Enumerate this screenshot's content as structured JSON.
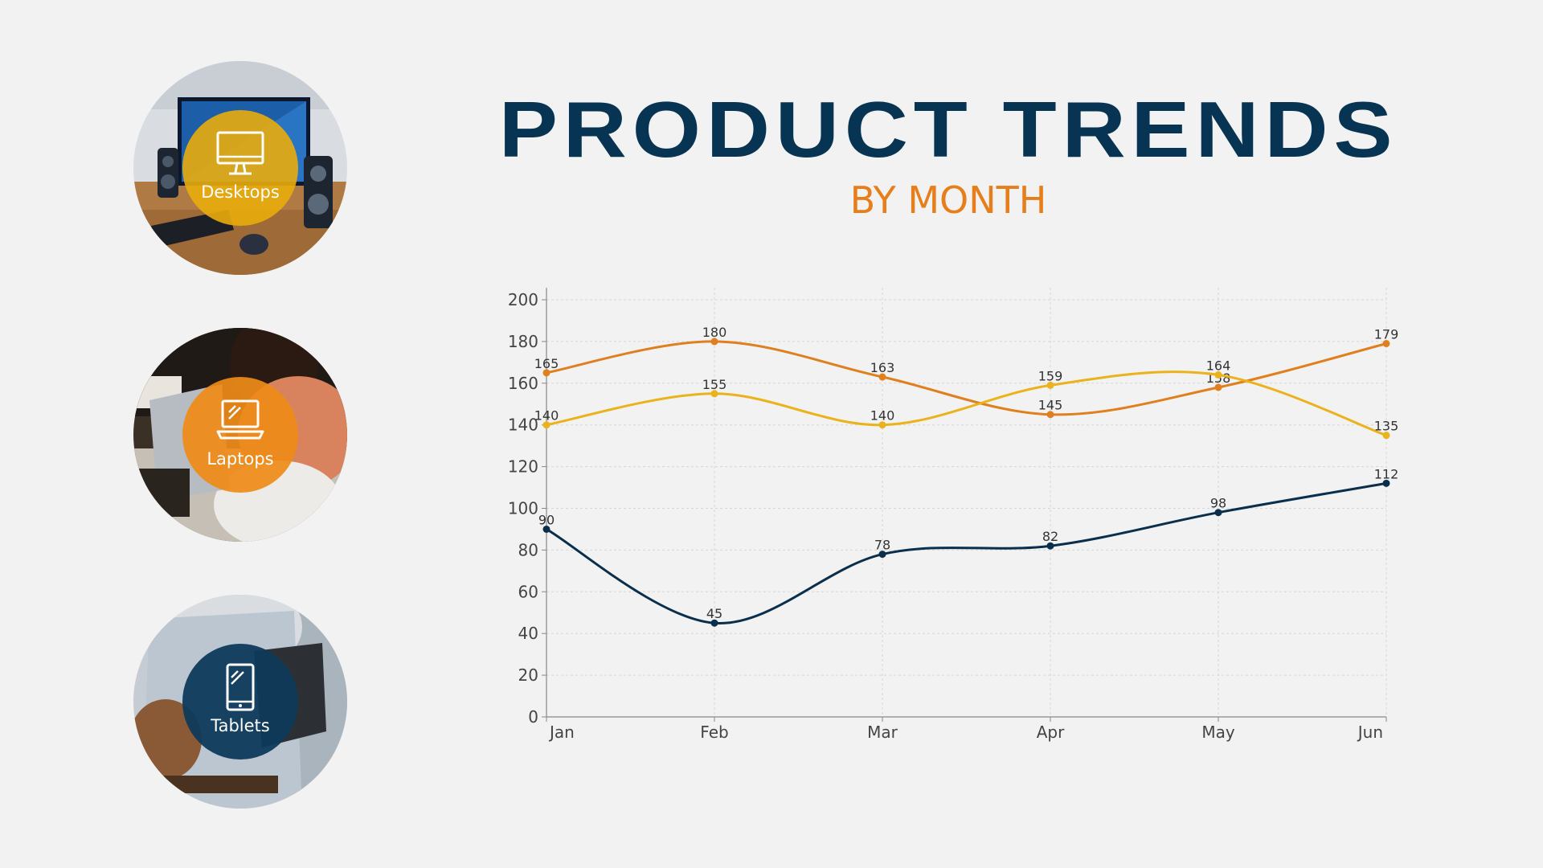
{
  "header": {
    "title": "PRODUCT TRENDS",
    "subtitle": "BY MONTH"
  },
  "categories_panel": [
    {
      "label": "Desktops",
      "icon": "desktop-icon",
      "color": "#e9ac0c"
    },
    {
      "label": "Laptops",
      "icon": "laptop-icon",
      "color": "#ef8b18"
    },
    {
      "label": "Tablets",
      "icon": "tablet-icon",
      "color": "#0e3a5a"
    }
  ],
  "chart_data": {
    "type": "line",
    "x": [
      "Jan",
      "Feb",
      "Mar",
      "Apr",
      "May",
      "Jun"
    ],
    "ylim": [
      0,
      200
    ],
    "yticks": [
      0,
      20,
      40,
      60,
      80,
      100,
      120,
      140,
      160,
      180,
      200
    ],
    "grid": true,
    "legend": "none",
    "series": [
      {
        "values": [
          165,
          180,
          163,
          145,
          158,
          179
        ],
        "color": "#e07f1f"
      },
      {
        "values": [
          140,
          155,
          140,
          159,
          164,
          135
        ],
        "color": "#eab21c"
      },
      {
        "values": [
          90,
          45,
          78,
          82,
          98,
          112
        ],
        "color": "#0a2f4c"
      }
    ]
  }
}
